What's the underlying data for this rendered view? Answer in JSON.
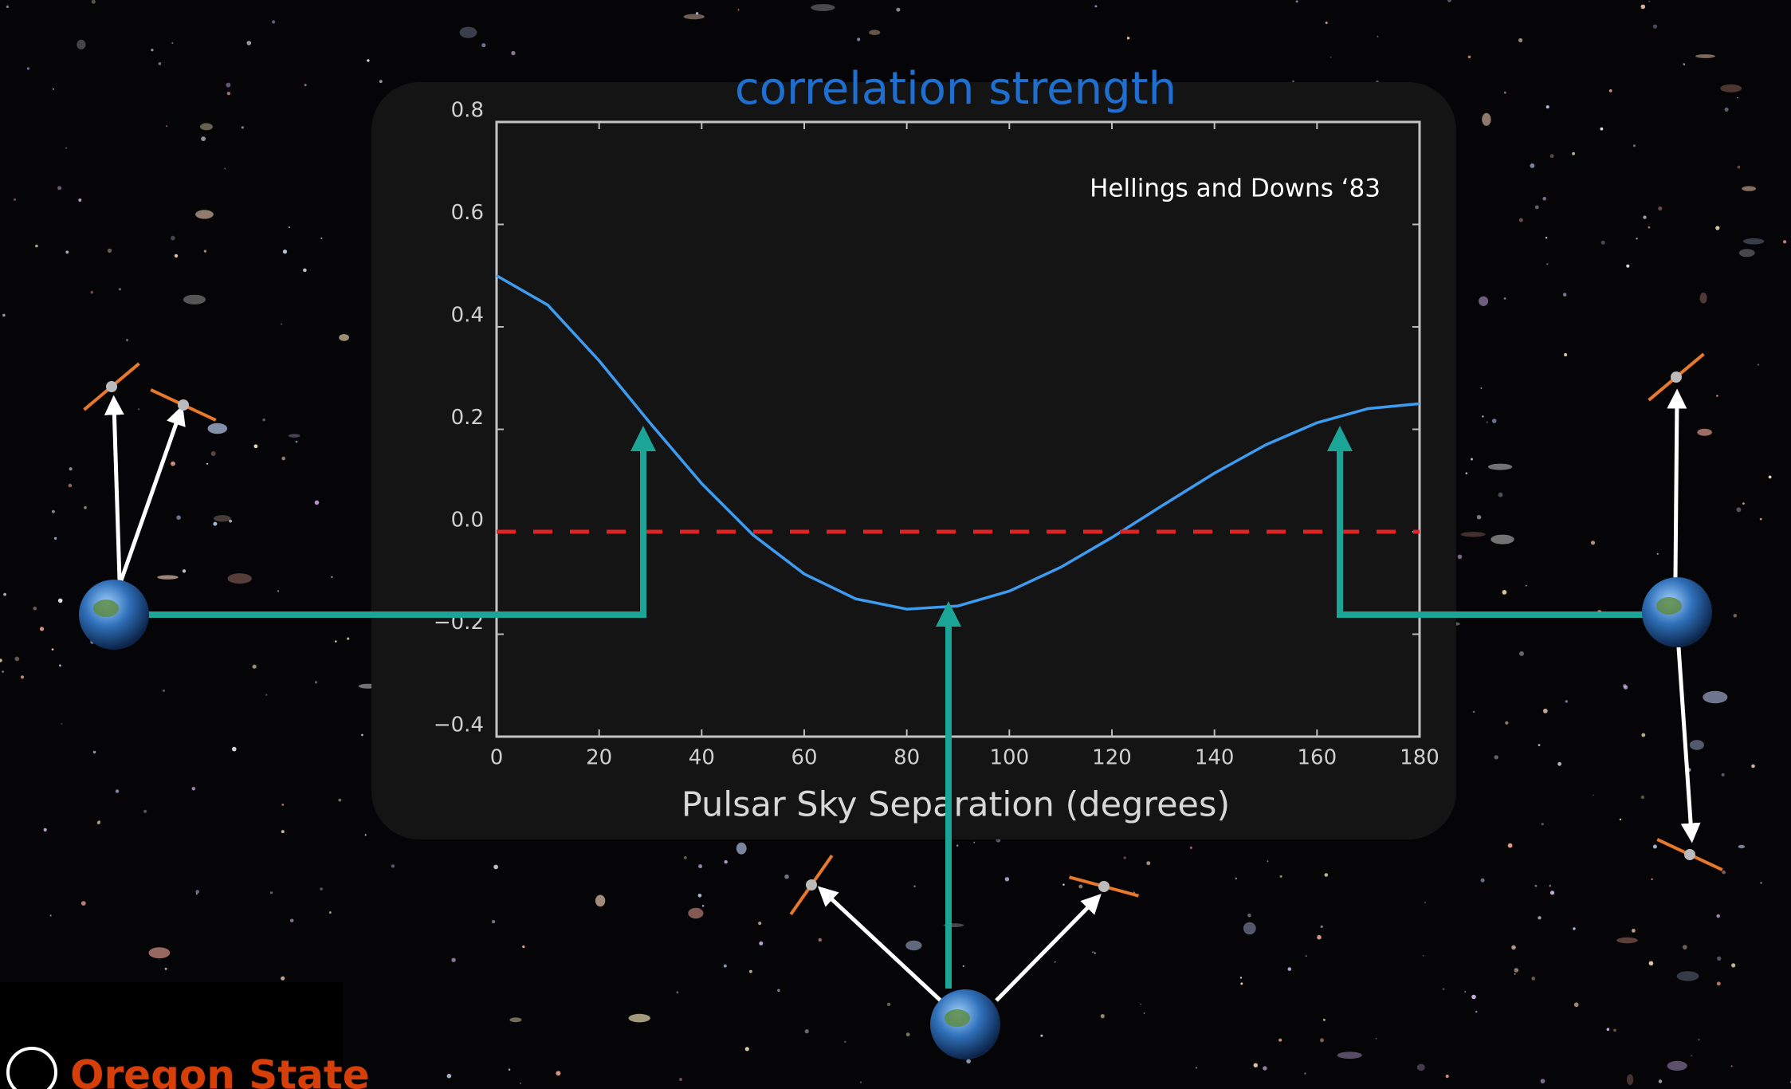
{
  "chart_data": {
    "type": "line",
    "title": "correlation strength",
    "annotation": "Hellings and Downs  ‘83",
    "xlabel": "Pulsar Sky Separation (degrees)",
    "xlim": [
      0,
      180
    ],
    "ylim": [
      -0.4,
      0.8
    ],
    "xticks": [
      0,
      20,
      40,
      60,
      80,
      100,
      120,
      140,
      160,
      180
    ],
    "yticks": [
      {
        "value": -0.4,
        "label": "−0.4"
      },
      {
        "value": -0.2,
        "label": "−0.2"
      },
      {
        "value": 0,
        "label": "0.0"
      },
      0.2,
      0.4,
      0.6,
      0.8
    ],
    "series": [
      {
        "color": "#3d9cf0",
        "x": [
          0,
          10,
          20,
          30,
          40,
          50,
          60,
          70,
          80,
          90,
          100,
          110,
          120,
          130,
          140,
          150,
          160,
          170,
          180
        ],
        "values": [
          0.5,
          0.4425,
          0.3339,
          0.2115,
          0.0941,
          -0.0062,
          -0.0824,
          -0.1309,
          -0.1511,
          -0.1449,
          -0.1159,
          -0.0694,
          -0.0112,
          0.0522,
          0.1144,
          0.1697,
          0.2128,
          0.2405,
          0.25
        ]
      },
      {
        "color": "#e02424",
        "dashed": true,
        "x": [
          0,
          180
        ],
        "values": [
          0,
          0
        ]
      }
    ]
  },
  "logo": {
    "text": "Oregon State"
  }
}
